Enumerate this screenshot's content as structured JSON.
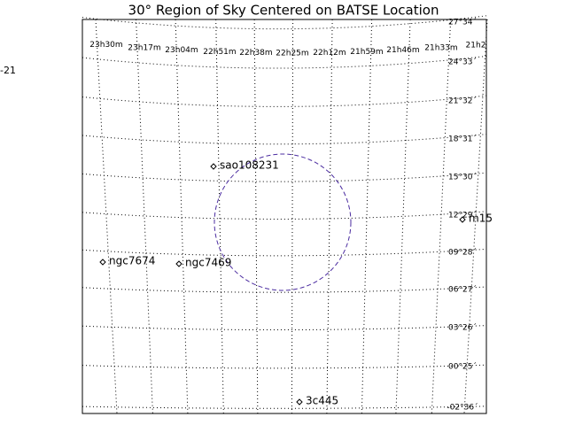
{
  "title": "30° Region of Sky Centered on BATSE Location",
  "side_label": "-21",
  "ra_labels": [
    "23h30m",
    "23h17m",
    "23h04m",
    "22h51m",
    "22h38m",
    "22h25m",
    "22h12m",
    "21h59m",
    "21h46m",
    "21h33m",
    "21h2"
  ],
  "dec_labels": [
    "27°34´",
    "24°33´",
    "21°32´",
    "18°31´",
    "15°30´",
    "12°29´",
    "09°28´",
    "06°27´",
    "03°26´",
    "00°25´",
    "-02°36´"
  ],
  "objects": [
    {
      "name": "sao108231"
    },
    {
      "name": "m15"
    },
    {
      "name": "ngc7674"
    },
    {
      "name": "ngc7469"
    },
    {
      "name": "3c445"
    }
  ]
}
